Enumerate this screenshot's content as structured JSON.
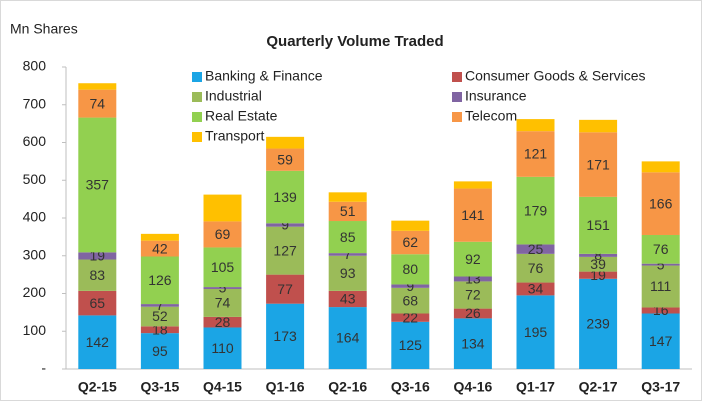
{
  "chart_data": {
    "type": "stacked_bar",
    "title": "Quarterly Volume Traded",
    "y_label": "Mn Shares",
    "categories": [
      "Q2-15",
      "Q3-15",
      "Q4-15",
      "Q1-16",
      "Q2-16",
      "Q3-16",
      "Q4-16",
      "Q1-17",
      "Q2-17",
      "Q3-17"
    ],
    "series": [
      {
        "name": "Banking & Finance",
        "color": "#1ba5e5",
        "values": [
          142,
          95,
          110,
          173,
          164,
          125,
          134,
          195,
          239,
          147
        ]
      },
      {
        "name": "Consumer Goods & Services",
        "color": "#c0504d",
        "values": [
          65,
          18,
          28,
          77,
          43,
          22,
          26,
          34,
          19,
          16
        ]
      },
      {
        "name": "Industrial",
        "color": "#9bbb59",
        "values": [
          83,
          52,
          74,
          127,
          93,
          68,
          72,
          76,
          39,
          111
        ]
      },
      {
        "name": "Insurance",
        "color": "#8064a2",
        "values": [
          19,
          7,
          5,
          9,
          7,
          9,
          13,
          25,
          8,
          5
        ]
      },
      {
        "name": "Real Estate",
        "color": "#92d050",
        "values": [
          357,
          126,
          105,
          139,
          85,
          80,
          92,
          179,
          151,
          76
        ]
      },
      {
        "name": "Telecom",
        "color": "#f79646",
        "values": [
          74,
          42,
          69,
          59,
          51,
          62,
          141,
          121,
          171,
          166
        ]
      },
      {
        "name": "Transport",
        "color": "#ffc000",
        "values": [
          17,
          18,
          71,
          31,
          25,
          27,
          19,
          32,
          33,
          29
        ],
        "data_labels": false
      }
    ],
    "ylim": [
      0,
      800
    ],
    "yticks": [
      {
        "value": 0,
        "label": "-"
      },
      100,
      200,
      300,
      400,
      500,
      600,
      700,
      800
    ],
    "grid": false,
    "legend": "top"
  }
}
